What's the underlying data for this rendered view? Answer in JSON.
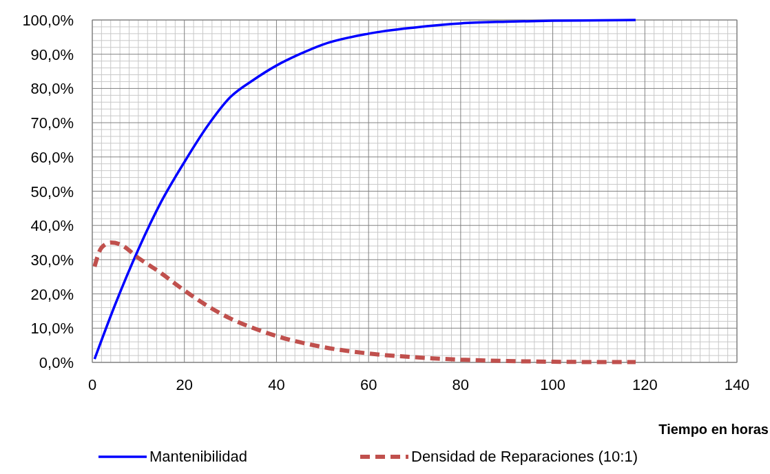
{
  "chart_data": {
    "type": "line",
    "xlabel": "Tiempo en horas",
    "xlim": [
      0,
      140
    ],
    "xticks": [
      0,
      20,
      40,
      60,
      80,
      100,
      120,
      140
    ],
    "ylim": [
      0,
      100
    ],
    "yticks": [
      {
        "value": 0,
        "label": "0,0%"
      },
      {
        "value": 10,
        "label": "10,0%"
      },
      {
        "value": 20,
        "label": "20,0%"
      },
      {
        "value": 30,
        "label": "30,0%"
      },
      {
        "value": 40,
        "label": "40,0%"
      },
      {
        "value": 50,
        "label": "50,0%"
      },
      {
        "value": 60,
        "label": "60,0%"
      },
      {
        "value": 70,
        "label": "70,0%"
      },
      {
        "value": 80,
        "label": "80,0%"
      },
      {
        "value": 90,
        "label": "90,0%"
      },
      {
        "value": 100,
        "label": "100,0%"
      }
    ],
    "grid": true,
    "legend": "bottom",
    "series": [
      {
        "name": "Mantenibilidad",
        "color": "#0000ff",
        "line_style": "solid",
        "x": [
          0.5,
          5,
          10,
          15,
          20,
          25,
          30,
          35,
          40,
          45,
          50,
          60,
          70,
          80,
          90,
          100,
          110,
          118
        ],
        "values": [
          1,
          17,
          33,
          47,
          58.5,
          69,
          77.5,
          82.5,
          86.7,
          90,
          92.8,
          96,
          97.8,
          99,
          99.5,
          99.8,
          99.9,
          100
        ]
      },
      {
        "name": "Densidad de Reparaciones (10:1)",
        "color": "#c0504d",
        "line_style": "dashed",
        "x": [
          0.5,
          2,
          4,
          6,
          10,
          15,
          20,
          25,
          30,
          35,
          40,
          50,
          60,
          70,
          80,
          90,
          100,
          110,
          118
        ],
        "values": [
          28,
          33.5,
          35,
          34.5,
          30.5,
          26,
          21,
          16.5,
          12.8,
          10,
          7.7,
          4.5,
          2.6,
          1.5,
          0.8,
          0.4,
          0.2,
          0.1,
          0.1
        ]
      }
    ]
  }
}
